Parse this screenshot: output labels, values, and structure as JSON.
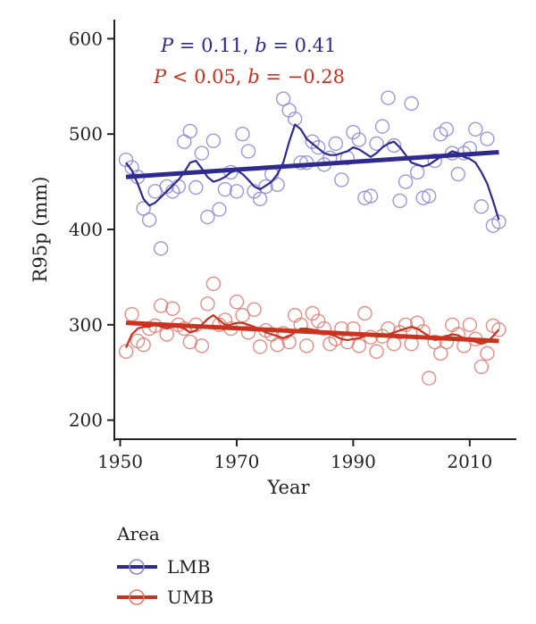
{
  "chart_data": {
    "type": "scatter",
    "xlabel": "Year",
    "ylabel": "R95p (mm)",
    "xlim": [
      1949,
      2018
    ],
    "ylim": [
      180,
      620
    ],
    "xticks": [
      1950,
      1970,
      1990,
      2010
    ],
    "yticks": [
      200,
      300,
      400,
      500,
      600
    ],
    "grid": false,
    "legend_title": "Area",
    "legend_position": "bottom",
    "annotations": [
      {
        "series": "LMB",
        "p_text": "P",
        "p_op": " = 0.11, ",
        "b_text": "b",
        "b_val": " = 0.41",
        "color": "#2e2a8f"
      },
      {
        "series": "UMB",
        "p_text": "P",
        "p_op": " < 0.05, ",
        "b_text": "b",
        "b_val": " = −0.28",
        "color": "#c8321e"
      }
    ],
    "series": [
      {
        "name": "LMB",
        "color": "#2e2a8f",
        "point_color": "#8a86d6",
        "x": [
          1951,
          1952,
          1953,
          1954,
          1955,
          1956,
          1957,
          1958,
          1959,
          1960,
          1961,
          1962,
          1963,
          1964,
          1965,
          1966,
          1967,
          1968,
          1969,
          1970,
          1971,
          1972,
          1973,
          1974,
          1975,
          1976,
          1977,
          1978,
          1979,
          1980,
          1981,
          1982,
          1983,
          1984,
          1985,
          1986,
          1987,
          1988,
          1989,
          1990,
          1991,
          1992,
          1993,
          1994,
          1995,
          1996,
          1997,
          1998,
          1999,
          2000,
          2001,
          2002,
          2003,
          2004,
          2005,
          2006,
          2007,
          2008,
          2009,
          2010,
          2011,
          2012,
          2013,
          2014,
          2015
        ],
        "values": [
          473,
          465,
          455,
          422,
          410,
          440,
          380,
          445,
          440,
          445,
          492,
          503,
          444,
          480,
          413,
          493,
          421,
          442,
          460,
          440,
          500,
          482,
          440,
          432,
          445,
          458,
          447,
          537,
          525,
          516,
          470,
          470,
          492,
          486,
          468,
          475,
          490,
          452,
          475,
          502,
          494,
          433,
          435,
          490,
          508,
          538,
          488,
          430,
          450,
          532,
          460,
          433,
          435,
          472,
          500,
          505,
          480,
          458,
          480,
          485,
          505,
          424,
          495,
          404,
          408
        ],
        "smooth": [
          470,
          462,
          448,
          432,
          425,
          428,
          434,
          440,
          446,
          452,
          460,
          470,
          472,
          464,
          455,
          450,
          452,
          455,
          460,
          462,
          458,
          452,
          445,
          442,
          446,
          450,
          458,
          470,
          492,
          510,
          505,
          495,
          490,
          485,
          480,
          478,
          478,
          480,
          482,
          486,
          484,
          480,
          476,
          480,
          486,
          490,
          492,
          486,
          478,
          470,
          468,
          466,
          468,
          472,
          476,
          478,
          482,
          480,
          476,
          474,
          470,
          460,
          448,
          430,
          410
        ],
        "trend": [
          455,
          481
        ]
      },
      {
        "name": "UMB",
        "color": "#c8321e",
        "point_color": "#e07a70",
        "x": [
          1951,
          1952,
          1953,
          1954,
          1955,
          1956,
          1957,
          1958,
          1959,
          1960,
          1961,
          1962,
          1963,
          1964,
          1965,
          1966,
          1967,
          1968,
          1969,
          1970,
          1971,
          1972,
          1973,
          1974,
          1975,
          1976,
          1977,
          1978,
          1979,
          1980,
          1981,
          1982,
          1983,
          1984,
          1985,
          1986,
          1987,
          1988,
          1989,
          1990,
          1991,
          1992,
          1993,
          1994,
          1995,
          1996,
          1997,
          1998,
          1999,
          2000,
          2001,
          2002,
          2003,
          2004,
          2005,
          2006,
          2007,
          2008,
          2009,
          2010,
          2011,
          2012,
          2013,
          2014,
          2015
        ],
        "values": [
          272,
          311,
          283,
          279,
          296,
          299,
          320,
          290,
          317,
          300,
          296,
          282,
          300,
          278,
          322,
          343,
          300,
          305,
          296,
          324,
          310,
          292,
          316,
          277,
          294,
          290,
          279,
          291,
          282,
          310,
          300,
          278,
          312,
          304,
          296,
          280,
          285,
          296,
          282,
          296,
          278,
          312,
          287,
          272,
          288,
          296,
          280,
          292,
          300,
          280,
          302,
          293,
          244,
          282,
          270,
          282,
          300,
          290,
          278,
          300,
          285,
          256,
          270,
          299,
          295
        ],
        "smooth": [
          276,
          290,
          296,
          298,
          298,
          300,
          298,
          296,
          298,
          298,
          296,
          292,
          294,
          300,
          306,
          310,
          305,
          300,
          300,
          302,
          302,
          300,
          298,
          295,
          292,
          290,
          288,
          286,
          288,
          292,
          296,
          296,
          295,
          294,
          292,
          290,
          288,
          285,
          284,
          285,
          286,
          288,
          290,
          290,
          289,
          290,
          292,
          294,
          296,
          298,
          296,
          292,
          288,
          284,
          285,
          288,
          290,
          289,
          286,
          284,
          282,
          280,
          282,
          288,
          295
        ],
        "trend": [
          302,
          283
        ]
      }
    ]
  }
}
